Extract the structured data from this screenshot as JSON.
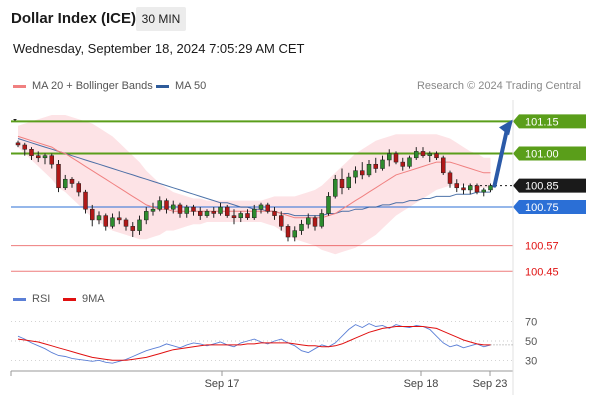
{
  "header": {
    "title": "Dollar Index (ICE)",
    "interval": "30 MIN",
    "timestamp": "Wednesday, September 18, 2024 7:05:29 AM CET"
  },
  "legend": {
    "bollinger_label": "MA 20 + Bollinger Bands",
    "ma50_label": "MA 50",
    "credit": "Research © 2024 Trading Central",
    "colors": {
      "bollinger": "#f08080",
      "ma50": "#2e5b9a",
      "band_fill": "#fde3e6"
    }
  },
  "rsi_legend": {
    "rsi_label": "RSI",
    "ma9_label": "9MA",
    "colors": {
      "rsi": "#5b7fd6",
      "ma9": "#e01010"
    }
  },
  "chart_data": [
    {
      "type": "candlestick",
      "title": "",
      "yrange": [
        100.4,
        101.25
      ],
      "x_ticks": [
        "Sep 17",
        "Sep 18",
        "Sep 23"
      ],
      "levels": [
        {
          "value": 101.15,
          "label": "101.15",
          "color": "#5a9e1a",
          "kind": "resistance"
        },
        {
          "value": 101.0,
          "label": "101.00",
          "color": "#5a9e1a",
          "kind": "resistance"
        },
        {
          "value": 100.85,
          "label": "100.85",
          "color": "#1a1a1a",
          "kind": "last"
        },
        {
          "value": 100.75,
          "label": "100.75",
          "color": "#2b6fd6",
          "kind": "pivot"
        },
        {
          "value": 100.57,
          "label": "100.57",
          "color": "#e01010",
          "kind": "support"
        },
        {
          "value": 100.45,
          "label": "100.45",
          "color": "#e01010",
          "kind": "support"
        }
      ],
      "candles": [
        [
          101.05,
          101.06,
          101.03,
          101.04
        ],
        [
          101.04,
          101.05,
          100.99,
          101.02
        ],
        [
          101.02,
          101.03,
          100.97,
          100.99
        ],
        [
          100.99,
          101.01,
          100.96,
          100.98
        ],
        [
          100.98,
          101.0,
          100.95,
          100.99
        ],
        [
          100.99,
          101.0,
          100.93,
          100.95
        ],
        [
          100.95,
          100.97,
          100.82,
          100.84
        ],
        [
          100.84,
          100.9,
          100.83,
          100.88
        ],
        [
          100.88,
          100.89,
          100.84,
          100.86
        ],
        [
          100.86,
          100.87,
          100.8,
          100.82
        ],
        [
          100.82,
          100.83,
          100.72,
          100.74
        ],
        [
          100.74,
          100.76,
          100.66,
          100.69
        ],
        [
          100.69,
          100.73,
          100.67,
          100.71
        ],
        [
          100.71,
          100.72,
          100.64,
          100.66
        ],
        [
          100.66,
          100.72,
          100.65,
          100.7
        ],
        [
          100.7,
          100.73,
          100.67,
          100.69
        ],
        [
          100.69,
          100.7,
          100.64,
          100.66
        ],
        [
          100.66,
          100.68,
          100.61,
          100.64
        ],
        [
          100.64,
          100.71,
          100.62,
          100.69
        ],
        [
          100.69,
          100.75,
          100.67,
          100.73
        ],
        [
          100.73,
          100.77,
          100.71,
          100.74
        ],
        [
          100.74,
          100.8,
          100.73,
          100.78
        ],
        [
          100.78,
          100.79,
          100.72,
          100.74
        ],
        [
          100.74,
          100.78,
          100.72,
          100.76
        ],
        [
          100.76,
          100.77,
          100.7,
          100.72
        ],
        [
          100.72,
          100.76,
          100.7,
          100.75
        ],
        [
          100.75,
          100.76,
          100.71,
          100.73
        ],
        [
          100.73,
          100.75,
          100.69,
          100.71
        ],
        [
          100.71,
          100.74,
          100.7,
          100.73
        ],
        [
          100.73,
          100.75,
          100.7,
          100.72
        ],
        [
          100.72,
          100.77,
          100.71,
          100.75
        ],
        [
          100.75,
          100.76,
          100.7,
          100.71
        ],
        [
          100.71,
          100.74,
          100.67,
          100.7
        ],
        [
          100.7,
          100.73,
          100.68,
          100.72
        ],
        [
          100.72,
          100.74,
          100.69,
          100.7
        ],
        [
          100.7,
          100.76,
          100.69,
          100.74
        ],
        [
          100.74,
          100.77,
          100.72,
          100.76
        ],
        [
          100.76,
          100.77,
          100.72,
          100.73
        ],
        [
          100.73,
          100.75,
          100.69,
          100.71
        ],
        [
          100.71,
          100.73,
          100.64,
          100.66
        ],
        [
          100.66,
          100.67,
          100.59,
          100.61
        ],
        [
          100.61,
          100.66,
          100.59,
          100.64
        ],
        [
          100.64,
          100.69,
          100.62,
          100.67
        ],
        [
          100.67,
          100.72,
          100.65,
          100.7
        ],
        [
          100.7,
          100.71,
          100.64,
          100.66
        ],
        [
          100.66,
          100.74,
          100.65,
          100.72
        ],
        [
          100.72,
          100.82,
          100.71,
          100.8
        ],
        [
          100.8,
          100.9,
          100.79,
          100.88
        ],
        [
          100.88,
          100.93,
          100.81,
          100.84
        ],
        [
          100.84,
          100.91,
          100.83,
          100.89
        ],
        [
          100.89,
          100.94,
          100.86,
          100.92
        ],
        [
          100.92,
          100.96,
          100.88,
          100.9
        ],
        [
          100.9,
          100.97,
          100.89,
          100.95
        ],
        [
          100.95,
          100.98,
          100.91,
          100.93
        ],
        [
          100.93,
          100.99,
          100.92,
          100.97
        ],
        [
          100.97,
          101.02,
          100.94,
          101.0
        ],
        [
          101.0,
          101.01,
          100.95,
          100.96
        ],
        [
          100.96,
          100.98,
          100.92,
          100.94
        ],
        [
          100.94,
          100.99,
          100.93,
          100.98
        ],
        [
          100.98,
          101.03,
          100.97,
          101.01
        ],
        [
          101.01,
          101.03,
          100.98,
          100.99
        ],
        [
          100.99,
          101.01,
          100.96,
          101.0
        ],
        [
          101.0,
          101.01,
          100.97,
          100.98
        ],
        [
          100.98,
          100.99,
          100.9,
          100.91
        ],
        [
          100.91,
          100.92,
          100.84,
          100.86
        ],
        [
          100.86,
          100.88,
          100.82,
          100.84
        ],
        [
          100.84,
          100.86,
          100.81,
          100.83
        ],
        [
          100.83,
          100.86,
          100.81,
          100.85
        ],
        [
          100.85,
          100.86,
          100.81,
          100.82
        ],
        [
          100.82,
          100.84,
          100.8,
          100.83
        ],
        [
          100.83,
          100.86,
          100.82,
          100.85
        ]
      ],
      "ma50": [
        101.07,
        101.06,
        101.05,
        101.04,
        101.03,
        101.02,
        101.01,
        101.0,
        100.99,
        100.98,
        100.97,
        100.96,
        100.95,
        100.94,
        100.93,
        100.92,
        100.91,
        100.9,
        100.89,
        100.88,
        100.87,
        100.86,
        100.85,
        100.84,
        100.83,
        100.82,
        100.81,
        100.8,
        100.79,
        100.78,
        100.77,
        100.77,
        100.76,
        100.75,
        100.75,
        100.74,
        100.74,
        100.73,
        100.73,
        100.72,
        100.72,
        100.71,
        100.71,
        100.71,
        100.71,
        100.71,
        100.72,
        100.72,
        100.73,
        100.73,
        100.74,
        100.74,
        100.75,
        100.75,
        100.76,
        100.76,
        100.77,
        100.77,
        100.78,
        100.78,
        100.79,
        100.79,
        100.8,
        100.8,
        100.8,
        100.81,
        100.81,
        100.81,
        100.82,
        100.82,
        100.82
      ],
      "ma20": [
        101.08,
        101.07,
        101.06,
        101.05,
        101.04,
        101.03,
        101.01,
        101.0,
        100.98,
        100.96,
        100.94,
        100.92,
        100.9,
        100.88,
        100.86,
        100.84,
        100.82,
        100.8,
        100.78,
        100.76,
        100.75,
        100.74,
        100.74,
        100.73,
        100.73,
        100.73,
        100.73,
        100.73,
        100.73,
        100.73,
        100.73,
        100.73,
        100.73,
        100.73,
        100.73,
        100.73,
        100.73,
        100.73,
        100.73,
        100.72,
        100.71,
        100.7,
        100.7,
        100.7,
        100.7,
        100.7,
        100.71,
        100.72,
        100.74,
        100.76,
        100.78,
        100.8,
        100.82,
        100.84,
        100.86,
        100.88,
        100.9,
        100.91,
        100.92,
        100.93,
        100.94,
        100.95,
        100.96,
        100.96,
        100.96,
        100.95,
        100.94,
        100.93,
        100.92,
        100.91,
        100.91
      ],
      "band_width": [
        0.05,
        0.07,
        0.09,
        0.11,
        0.13,
        0.15,
        0.17,
        0.18,
        0.19,
        0.2,
        0.21,
        0.22,
        0.22,
        0.22,
        0.22,
        0.21,
        0.2,
        0.19,
        0.18,
        0.16,
        0.14,
        0.12,
        0.1,
        0.09,
        0.08,
        0.07,
        0.06,
        0.06,
        0.05,
        0.05,
        0.05,
        0.05,
        0.05,
        0.05,
        0.05,
        0.05,
        0.05,
        0.06,
        0.07,
        0.08,
        0.09,
        0.1,
        0.11,
        0.12,
        0.13,
        0.15,
        0.17,
        0.19,
        0.2,
        0.21,
        0.22,
        0.22,
        0.22,
        0.22,
        0.21,
        0.2,
        0.19,
        0.18,
        0.17,
        0.16,
        0.15,
        0.14,
        0.13,
        0.12,
        0.11,
        0.1,
        0.09,
        0.08,
        0.08,
        0.07,
        0.07
      ],
      "forecast_target": 101.15,
      "colors": {
        "up": "#2e8b2e",
        "down": "#b01818"
      }
    },
    {
      "type": "line",
      "title": "",
      "ylim": [
        20,
        80
      ],
      "y_ticks": [
        "70",
        "50",
        "30"
      ],
      "series": [
        {
          "name": "RSI",
          "values": [
            55,
            52,
            48,
            45,
            42,
            38,
            35,
            34,
            32,
            31,
            30,
            29,
            30,
            28,
            27,
            29,
            31,
            34,
            37,
            40,
            42,
            44,
            47,
            45,
            43,
            46,
            48,
            47,
            45,
            47,
            49,
            46,
            44,
            48,
            50,
            52,
            49,
            47,
            50,
            52,
            48,
            45,
            40,
            38,
            42,
            46,
            44,
            48,
            55,
            62,
            67,
            64,
            68,
            65,
            66,
            63,
            67,
            65,
            64,
            66,
            65,
            62,
            55,
            48,
            44,
            46,
            43,
            45,
            47,
            44,
            46
          ]
        },
        {
          "name": "9MA",
          "values": [
            52,
            51,
            50,
            49,
            47,
            45,
            43,
            41,
            39,
            37,
            35,
            33,
            32,
            31,
            30,
            30,
            30,
            31,
            32,
            33,
            35,
            37,
            39,
            41,
            42,
            43,
            44,
            45,
            46,
            46,
            46,
            46,
            46,
            46,
            47,
            47,
            48,
            48,
            48,
            48,
            48,
            47,
            46,
            45,
            45,
            44,
            44,
            45,
            47,
            50,
            53,
            56,
            59,
            61,
            63,
            64,
            65,
            65,
            65,
            65,
            65,
            64,
            63,
            60,
            57,
            54,
            51,
            49,
            47,
            46,
            46
          ]
        }
      ]
    }
  ]
}
